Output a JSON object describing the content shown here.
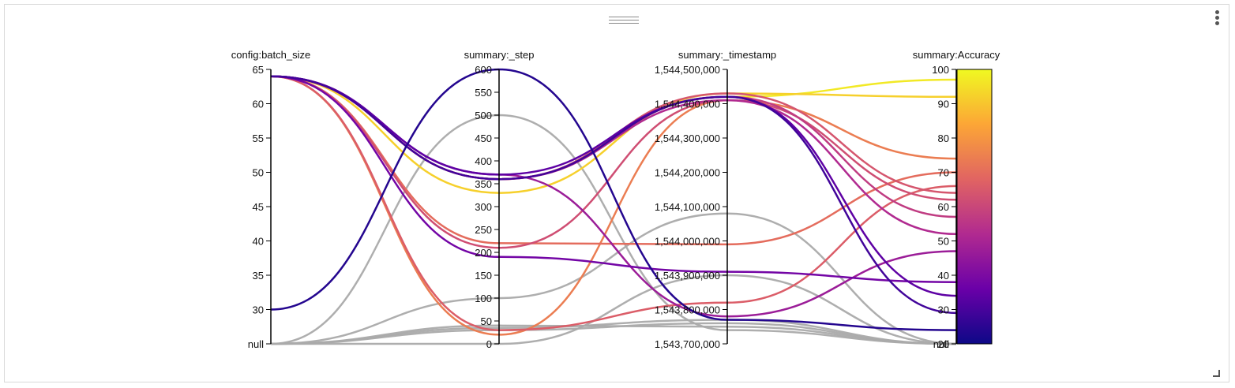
{
  "chart_data": {
    "type": "parallel-coordinates",
    "axes": [
      {
        "key": "batch",
        "title": "config:batch_size",
        "min": 25,
        "max": 65,
        "ticks": [
          65,
          60,
          55,
          50,
          45,
          40,
          35,
          30
        ],
        "null_label": "null",
        "format": "plain"
      },
      {
        "key": "step",
        "title": "summary:_step",
        "min": 0,
        "max": 600,
        "ticks": [
          600,
          550,
          500,
          450,
          400,
          350,
          300,
          250,
          200,
          150,
          100,
          50,
          0
        ],
        "format": "plain"
      },
      {
        "key": "ts",
        "title": "summary:_timestamp",
        "min": 1543700000,
        "max": 1544500000,
        "ticks": [
          1544500000,
          1544400000,
          1544300000,
          1544200000,
          1544100000,
          1544000000,
          1543900000,
          1543800000,
          1543700000
        ],
        "format": "comma"
      },
      {
        "key": "acc",
        "title": "summary:Accuracy",
        "min": 20,
        "max": 100,
        "ticks": [
          100,
          90,
          80,
          70,
          60,
          50,
          40,
          30,
          20
        ],
        "null_label": "null",
        "format": "plain"
      }
    ],
    "colorscale": {
      "name": "plasma",
      "range": [
        20,
        100
      ],
      "stops": [
        "#0d0887",
        "#6a00a8",
        "#b12a90",
        "#e16462",
        "#fca636",
        "#f0f921"
      ],
      "null_color": "#aaaaaa"
    },
    "runs": [
      {
        "batch": 64,
        "step": 360,
        "ts": 1544420000,
        "acc": 97
      },
      {
        "batch": 64,
        "step": 330,
        "ts": 1544430000,
        "acc": 92
      },
      {
        "batch": 64,
        "step": 20,
        "ts": 1544410000,
        "acc": 74
      },
      {
        "batch": 64,
        "step": 220,
        "ts": 1543990000,
        "acc": 70
      },
      {
        "batch": 64,
        "step": 30,
        "ts": 1543820000,
        "acc": 66
      },
      {
        "batch": 64,
        "step": 360,
        "ts": 1544430000,
        "acc": 64
      },
      {
        "batch": 64,
        "step": 210,
        "ts": 1544410000,
        "acc": 62
      },
      {
        "batch": 64,
        "step": 360,
        "ts": 1544420000,
        "acc": 57
      },
      {
        "batch": 64,
        "step": 360,
        "ts": 1544410000,
        "acc": 52
      },
      {
        "batch": 64,
        "step": 370,
        "ts": 1543780000,
        "acc": 47
      },
      {
        "batch": 64,
        "step": 190,
        "ts": 1543910000,
        "acc": 38
      },
      {
        "batch": 64,
        "step": 370,
        "ts": 1544420000,
        "acc": 34
      },
      {
        "batch": 64,
        "step": 360,
        "ts": 1544420000,
        "acc": 29
      },
      {
        "batch": 30,
        "step": 600,
        "ts": 1543770000,
        "acc": 24
      },
      {
        "batch": null,
        "step": 500,
        "ts": 1543740000,
        "acc": null
      },
      {
        "batch": null,
        "step": 100,
        "ts": 1544080000,
        "acc": null
      },
      {
        "batch": null,
        "step": 0,
        "ts": 1543900000,
        "acc": null
      },
      {
        "batch": null,
        "step": 30,
        "ts": 1543760000,
        "acc": null
      },
      {
        "batch": null,
        "step": 35,
        "ts": 1543770000,
        "acc": null
      },
      {
        "batch": null,
        "step": 40,
        "ts": 1543750000,
        "acc": null
      }
    ],
    "colorbar": {
      "ticks": [
        100,
        90,
        80,
        70,
        60,
        50,
        40,
        30,
        20
      ]
    },
    "grid": false,
    "legend": "colorbar-right"
  }
}
